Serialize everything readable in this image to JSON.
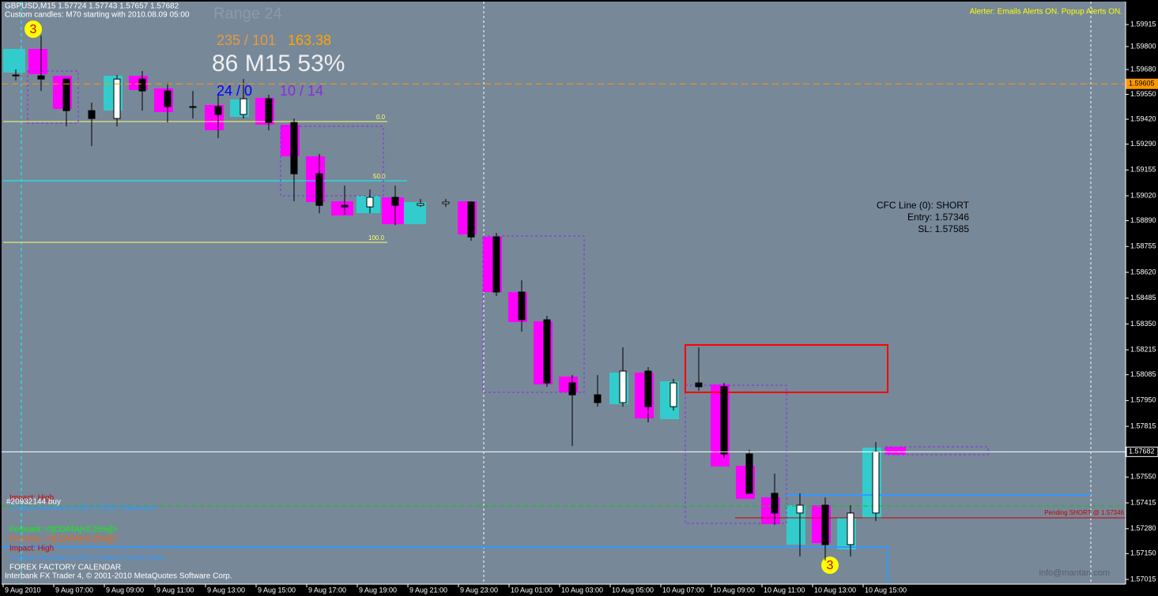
{
  "chart_data": {
    "type": "candlestick",
    "title": "GBPUSD,M15  1.57724 1.57743 1.57657 1.57682",
    "subtitle": "Custom candles: M70 starting with 2010.08.09 05:00",
    "categories": [
      "9 Aug 2010",
      null,
      "9 Aug 07:00",
      null,
      "9 Aug 09:00",
      null,
      "9 Aug 11:00",
      null,
      "9 Aug 13:00",
      null,
      "9 Aug 15:00",
      null,
      "9 Aug 17:00",
      null,
      "9 Aug 19:00",
      null,
      "9 Aug 21:00",
      null,
      "9 Aug 23:00",
      null,
      "10 Aug 01:00",
      null,
      "10 Aug 03:00",
      null,
      "10 Aug 05:00",
      null,
      "10 Aug 07:00",
      null,
      "10 Aug 09:00",
      null,
      "10 Aug 11:00",
      null,
      "10 Aug 13:00",
      null,
      "10 Aug 15:00"
    ],
    "open": [
      1.59651,
      1.59647,
      1.5963,
      1.59465,
      1.59424,
      1.5963,
      1.59568,
      1.59486,
      1.59486,
      1.59445,
      1.59527,
      1.59403,
      1.59135,
      1.5897,
      1.58962,
      1.59012,
      1.5897,
      1.58979,
      1.58987,
      1.58805,
      1.58517,
      1.58372,
      1.58042,
      1.5798,
      1.57939,
      1.58104,
      1.57918,
      1.58042,
      1.58022,
      1.57671,
      1.57465,
      1.57362,
      1.57403,
      1.57197,
      1.57362
    ],
    "high": [
      1.5968,
      1.59857,
      1.5963,
      1.59507,
      1.59651,
      1.59672,
      1.5961,
      1.59568,
      1.59548,
      1.5963,
      1.59548,
      1.59424,
      1.59238,
      1.59073,
      1.59053,
      1.59073,
      1.59003,
      1.59003,
      1.58991,
      1.58826,
      1.58578,
      1.58393,
      1.58083,
      1.58083,
      1.58228,
      1.58125,
      1.58063,
      1.58228,
      1.58042,
      1.57692,
      1.57568,
      1.57465,
      1.57444,
      1.57403,
      1.57733
    ],
    "low": [
      1.59622,
      1.59568,
      1.59383,
      1.5928,
      1.59383,
      1.59465,
      1.59403,
      1.59424,
      1.59321,
      1.59424,
      1.59362,
      1.58991,
      1.58929,
      1.58921,
      1.58929,
      1.58867,
      1.58962,
      1.58962,
      1.58785,
      1.58496,
      1.5831,
      1.58022,
      1.57712,
      1.57918,
      1.57918,
      1.57836,
      1.57898,
      1.58001,
      1.5765,
      1.57465,
      1.573,
      1.57135,
      1.57114,
      1.57135,
      1.5732
    ],
    "close": [
      1.59647,
      1.5963,
      1.59465,
      1.59424,
      1.5963,
      1.59568,
      1.59486,
      1.59486,
      1.59445,
      1.59527,
      1.59403,
      1.59135,
      1.5897,
      1.58962,
      1.59012,
      1.5897,
      1.58979,
      1.58987,
      1.58805,
      1.58517,
      1.58372,
      1.58042,
      1.5798,
      1.57939,
      1.58104,
      1.57918,
      1.58042,
      1.58022,
      1.57671,
      1.57465,
      1.57362,
      1.57403,
      1.57197,
      1.57362,
      1.57682
    ],
    "up_color": "#ffffff",
    "down_color": "#000000",
    "ylim": [
      1.56949,
      1.60035
    ],
    "yticks": [
      1.59915,
      {
        "value": 1.598,
        "label": "1.59800"
      },
      {
        "value": 1.5968,
        "label": "1.59680"
      },
      {
        "value": 1.5955,
        "label": "1.59550"
      },
      {
        "value": 1.5942,
        "label": "1.59420"
      },
      {
        "value": 1.5929,
        "label": "1.59290"
      },
      1.59155,
      {
        "value": 1.5902,
        "label": "1.59020"
      },
      {
        "value": 1.5889,
        "label": "1.58890"
      },
      1.58755,
      {
        "value": 1.5862,
        "label": "1.58620"
      },
      1.58485,
      {
        "value": 1.5835,
        "label": "1.58350"
      },
      1.58215,
      1.58085,
      {
        "value": 1.5795,
        "label": "1.57950"
      },
      1.57815,
      {
        "value": 1.5755,
        "label": "1.57550"
      },
      1.57415,
      {
        "value": 1.5728,
        "label": "1.57280"
      },
      {
        "value": 1.5715,
        "label": "1.57150"
      },
      1.57015
    ],
    "levels": [
      {
        "value": 1.59605,
        "color": "#ff9900"
      },
      {
        "value": 1.57682,
        "color": "#ffffff"
      }
    ]
  },
  "indicators": {
    "range": "Range 24",
    "ratio": "235 / 101",
    "pips": "163.38",
    "stats": "86 M15 53%",
    "count_a": "24 / 0",
    "count_b": "10 / 14",
    "fib_0": "0.0",
    "fib_50": "50.0",
    "fib_100": "100.0",
    "wave_top": "3",
    "wave_bottom": "3"
  },
  "alerter": "Alerter:  Emails Alerts ON.  Popup Alerts ON.",
  "cfc": {
    "line": "CFC Line (0): SHORT",
    "entry": "Entry: 1.57346",
    "sl": "SL: 1.57585",
    "pending": "Pending SHORT @ 1.57346"
  },
  "calendar": {
    "impact_1": "Impact: High",
    "order": "#20932144 buy",
    "event_1": "2:15pm Interbank USD: FOMC Statement",
    "forecast": "Forecast: <![CDATA[<0.25%]]>",
    "previous": "Previous: <![CDATA[<0.25%]]>",
    "impact_2": "Impact: High",
    "event_2": "2:15pm Interbank USD: Federal Funds Rate",
    "source": "FOREX FACTORY CALENDAR"
  },
  "footer": {
    "copyright": "Interbank FX Trader 4, © 2001-2010 MetaQuotes Software Corp.",
    "watermark": "info@mantan.com"
  }
}
